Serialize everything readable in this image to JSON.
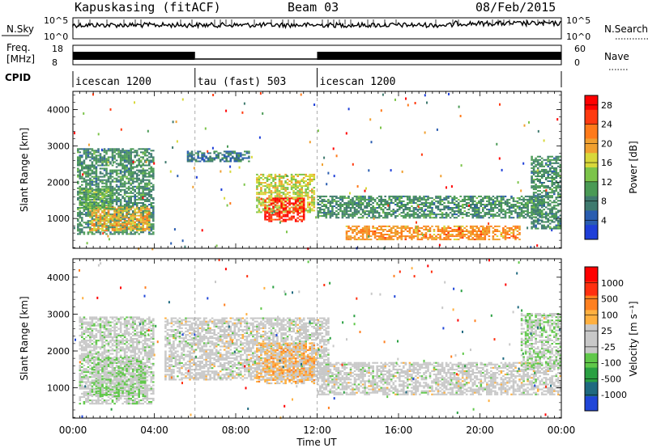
{
  "header": {
    "station": "Kapuskasing (fitACF)",
    "beam": "Beam 03",
    "date": "08/Feb/2015"
  },
  "strips": {
    "nsky": {
      "left_label": "N.Sky",
      "right_label": "N.Search",
      "ticks_left": [
        "10^5",
        "10^0"
      ],
      "ticks_right": [
        "10^5",
        "10^0"
      ]
    },
    "freq": {
      "left_label_1": "Freq.",
      "left_label_2": "[MHz]",
      "right_label": "Nave",
      "ticks_left": [
        "18",
        "8"
      ],
      "ticks_right": [
        "60",
        "0"
      ]
    },
    "cpid": {
      "label": "CPID",
      "segments": [
        {
          "start_hour": 0,
          "end_hour": 6,
          "name": "icescan 1200"
        },
        {
          "start_hour": 6,
          "end_hour": 12,
          "name": "tau (fast) 503"
        },
        {
          "start_hour": 12,
          "end_hour": 24,
          "name": "icescan 1200"
        }
      ]
    }
  },
  "colors": {
    "power": [
      "#1f3fd8",
      "#2a5db0",
      "#3f7a6f",
      "#4a9a55",
      "#7cc44a",
      "#d8d83a",
      "#f0a030",
      "#ff7a1a",
      "#ff3a10",
      "#ff0000"
    ],
    "velocity": [
      "#2046d8",
      "#1f6a80",
      "#2aa042",
      "#60c84a",
      "#c8c8c8",
      "#c8c8c8",
      "#ffb040",
      "#ff8020",
      "#ff3010",
      "#ff0000"
    ]
  },
  "chart_data": [
    {
      "type": "heatmap",
      "panel": "power",
      "xlabel": "Time UT",
      "ylabel": "Slant Range [km]",
      "x_ticks": [
        "00:00",
        "04:00",
        "08:00",
        "12:00",
        "16:00",
        "20:00",
        "00:00"
      ],
      "x_range_hours": [
        0,
        24
      ],
      "y_range_km": [
        180,
        4500
      ],
      "y_ticks": [
        1000,
        2000,
        3000,
        4000
      ],
      "colorbar": {
        "label": "Power [dB]",
        "tick_labels": [
          "4",
          "8",
          "12",
          "16",
          "20",
          "24",
          "28"
        ],
        "range": [
          0,
          30
        ]
      },
      "regions": [
        {
          "t0": 0.2,
          "t1": 4.0,
          "r0": 550,
          "r1": 2900,
          "value": 9
        },
        {
          "t0": 0.8,
          "t1": 3.8,
          "r0": 650,
          "r1": 1300,
          "value": 19
        },
        {
          "t0": 0.3,
          "t1": 2.0,
          "r0": 1250,
          "r1": 1800,
          "value": 12
        },
        {
          "t0": 5.6,
          "t1": 8.6,
          "r0": 2550,
          "r1": 2850,
          "value": 7
        },
        {
          "t0": 9.0,
          "t1": 11.8,
          "r0": 1150,
          "r1": 2200,
          "value": 16
        },
        {
          "t0": 9.4,
          "t1": 11.3,
          "r0": 900,
          "r1": 1550,
          "value": 27
        },
        {
          "t0": 12.0,
          "t1": 23.2,
          "r0": 1000,
          "r1": 1600,
          "value": 9
        },
        {
          "t0": 13.4,
          "t1": 22.0,
          "r0": 400,
          "r1": 800,
          "value": 21
        },
        {
          "t0": 22.5,
          "t1": 24.0,
          "r0": 700,
          "r1": 2700,
          "value": 9
        }
      ]
    },
    {
      "type": "heatmap",
      "panel": "velocity",
      "xlabel": "Time UT",
      "ylabel": "Slant Range [km]",
      "x_ticks": [
        "00:00",
        "04:00",
        "08:00",
        "12:00",
        "16:00",
        "20:00",
        "00:00"
      ],
      "x_range_hours": [
        0,
        24
      ],
      "y_range_km": [
        180,
        4500
      ],
      "y_ticks": [
        1000,
        2000,
        3000,
        4000
      ],
      "colorbar": {
        "label": "Velocity [m s⁻¹]",
        "tick_labels": [
          "1000",
          "500",
          "100",
          "25",
          "-25",
          "-100",
          "-500",
          "-1000"
        ],
        "range": [
          -1250,
          1250
        ]
      },
      "regions": [
        {
          "t0": 0.3,
          "t1": 4.0,
          "r0": 550,
          "r1": 2900,
          "value": -60
        },
        {
          "t0": 0.9,
          "t1": 3.6,
          "r0": 750,
          "r1": 1800,
          "value": -200
        },
        {
          "t0": 4.5,
          "t1": 12.5,
          "r0": 1200,
          "r1": 2900,
          "value": 0
        },
        {
          "t0": 9.0,
          "t1": 11.8,
          "r0": 1100,
          "r1": 2200,
          "value": 300
        },
        {
          "t0": 12.0,
          "t1": 24.0,
          "r0": 800,
          "r1": 1700,
          "value": 0
        },
        {
          "t0": 22.0,
          "t1": 24.0,
          "r0": 1500,
          "r1": 3000,
          "value": -150
        }
      ]
    }
  ]
}
